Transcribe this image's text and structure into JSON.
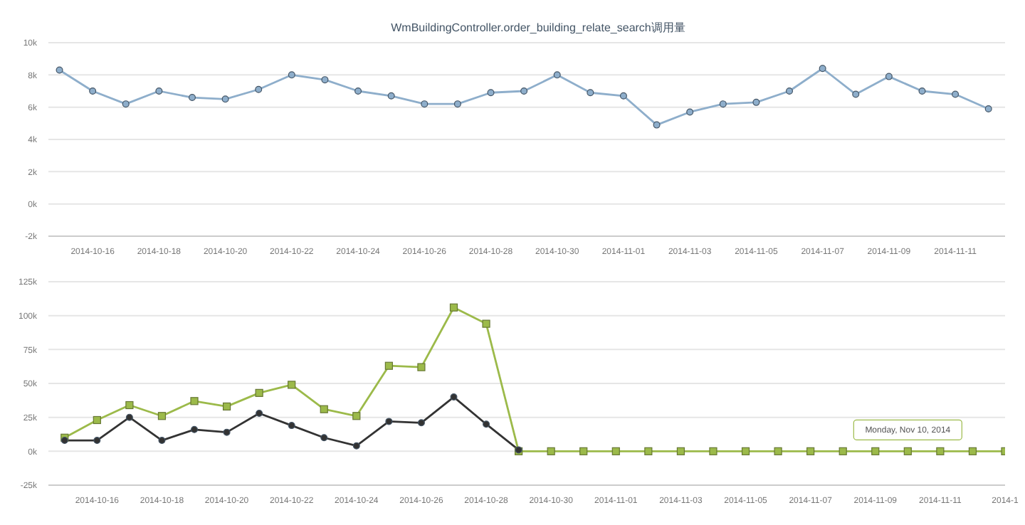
{
  "chart_data": [
    {
      "type": "line",
      "title": "WmBuildingController.order_building_relate_search调用量",
      "x": [
        "2014-10-15",
        "2014-10-16",
        "2014-10-17",
        "2014-10-18",
        "2014-10-19",
        "2014-10-20",
        "2014-10-21",
        "2014-10-22",
        "2014-10-23",
        "2014-10-24",
        "2014-10-25",
        "2014-10-26",
        "2014-10-27",
        "2014-10-28",
        "2014-10-29",
        "2014-10-30",
        "2014-10-31",
        "2014-11-01",
        "2014-11-02",
        "2014-11-03",
        "2014-11-04",
        "2014-11-05",
        "2014-11-06",
        "2014-11-07",
        "2014-11-08",
        "2014-11-09",
        "2014-11-10",
        "2014-11-11",
        "2014-11-12"
      ],
      "series": [
        {
          "color": "#8eaecb",
          "values": [
            8300,
            7000,
            6200,
            7000,
            6600,
            6500,
            7100,
            8000,
            7700,
            7000,
            6700,
            6200,
            6200,
            6900,
            7000,
            8000,
            6900,
            6700,
            4900,
            5700,
            6200,
            6300,
            7000,
            8400,
            6800,
            7900,
            7000,
            6800,
            5900
          ]
        }
      ],
      "xlim": [
        "2014-10-14T16:00",
        "2014-11-12T12:00"
      ],
      "xticks": [
        "2014-10-16",
        "2014-10-18",
        "2014-10-20",
        "2014-10-22",
        "2014-10-24",
        "2014-10-26",
        "2014-10-28",
        "2014-10-30",
        "2014-11-01",
        "2014-11-03",
        "2014-11-05",
        "2014-11-07",
        "2014-11-09",
        "2014-11-11"
      ],
      "ylim": [
        -2000,
        10000
      ],
      "yticks": [
        {
          "value": -2000,
          "label": "-2k"
        },
        {
          "value": 0,
          "label": "0k"
        },
        {
          "value": 2000,
          "label": "2k"
        },
        {
          "value": 4000,
          "label": "4k"
        },
        {
          "value": 6000,
          "label": "6k"
        },
        {
          "value": 8000,
          "label": "8k"
        },
        {
          "value": 10000,
          "label": "10k"
        }
      ],
      "grid": "y",
      "marker": "circle",
      "line_style": "solid"
    },
    {
      "type": "line",
      "x": [
        "2014-10-15",
        "2014-10-16",
        "2014-10-17",
        "2014-10-18",
        "2014-10-19",
        "2014-10-20",
        "2014-10-21",
        "2014-10-22",
        "2014-10-23",
        "2014-10-24",
        "2014-10-25",
        "2014-10-26",
        "2014-10-27",
        "2014-10-28",
        "2014-10-29",
        "2014-10-30",
        "2014-10-31",
        "2014-11-01",
        "2014-11-02",
        "2014-11-03",
        "2014-11-04",
        "2014-11-05",
        "2014-11-06",
        "2014-11-07",
        "2014-11-08",
        "2014-11-09",
        "2014-11-10",
        "2014-11-11",
        "2014-11-12",
        "2014-11-13"
      ],
      "series": [
        {
          "color": "#9cba4a",
          "marker": "square",
          "values": [
            10000,
            23000,
            34000,
            26000,
            37000,
            33000,
            43000,
            49000,
            31000,
            26000,
            63000,
            62000,
            106000,
            94000,
            0,
            0,
            0,
            0,
            0,
            0,
            0,
            0,
            0,
            0,
            0,
            0,
            0,
            0,
            0,
            0
          ]
        },
        {
          "color": "#333333",
          "marker": "circle",
          "values": [
            8000,
            8000,
            25000,
            8000,
            16000,
            14000,
            28000,
            19000,
            10000,
            4000,
            22000,
            21000,
            40000,
            20000,
            1000,
            null,
            null,
            null,
            null,
            null,
            null,
            null,
            null,
            null,
            null,
            null,
            null,
            null,
            null,
            null
          ]
        }
      ],
      "xlim": [
        "2014-10-14T12:00",
        "2014-11-13T00:00"
      ],
      "xticks": [
        "2014-10-16",
        "2014-10-18",
        "2014-10-20",
        "2014-10-22",
        "2014-10-24",
        "2014-10-26",
        "2014-10-28",
        "2014-10-30",
        "2014-11-01",
        "2014-11-03",
        "2014-11-05",
        "2014-11-07",
        "2014-11-09",
        "2014-11-11",
        {
          "value": "2014-11-13",
          "label": "2014-1"
        }
      ],
      "ylim": [
        -25000,
        125000
      ],
      "yticks": [
        {
          "value": -25000,
          "label": "-25k"
        },
        {
          "value": 0,
          "label": "0k"
        },
        {
          "value": 25000,
          "label": "25k"
        },
        {
          "value": 50000,
          "label": "50k"
        },
        {
          "value": 75000,
          "label": "75k"
        },
        {
          "value": 100000,
          "label": "100k"
        },
        {
          "value": 125000,
          "label": "125k"
        }
      ],
      "annotations": [
        {
          "text": "Monday, Nov 10, 2014",
          "x": "2014-11-10",
          "y": 0
        }
      ],
      "grid": "y",
      "line_style": "solid"
    }
  ]
}
